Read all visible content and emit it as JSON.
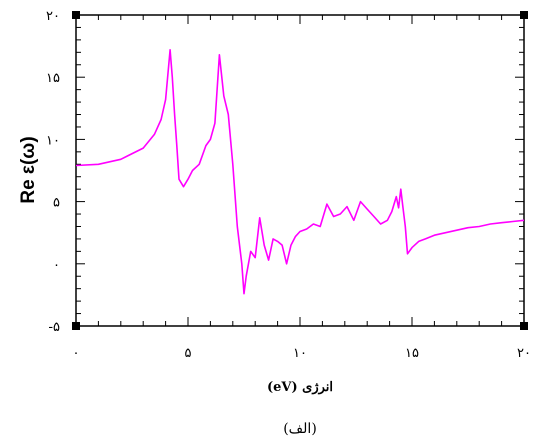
{
  "chart_data": {
    "type": "line",
    "xlabel": "انرژی (eV)",
    "ylabel": "Re ε(ω)",
    "caption": "(الف)",
    "xlim": [
      0,
      20
    ],
    "ylim": [
      -5,
      20
    ],
    "x_ticks": [
      {
        "value": 0,
        "label": "۰"
      },
      {
        "value": 5,
        "label": "۵"
      },
      {
        "value": 10,
        "label": "۱۰"
      },
      {
        "value": 15,
        "label": "۱۵"
      },
      {
        "value": 20,
        "label": "۲۰"
      }
    ],
    "y_ticks": [
      {
        "value": -5,
        "label": "-۵"
      },
      {
        "value": 0,
        "label": "۰"
      },
      {
        "value": 5,
        "label": "۵"
      },
      {
        "value": 10,
        "label": "۱۰"
      },
      {
        "value": 15,
        "label": "۱۵"
      },
      {
        "value": 20,
        "label": "۲۰"
      }
    ],
    "line_color": "#ff00ff",
    "series": [
      {
        "x": [
          0,
          1,
          2,
          3,
          3.5,
          3.8,
          4.0,
          4.2,
          4.3,
          4.4,
          4.5,
          4.6,
          4.8,
          5.0,
          5.2,
          5.5,
          5.8,
          6.0,
          6.2,
          6.4,
          6.6,
          6.8,
          7.0,
          7.2,
          7.4,
          7.5,
          7.6,
          7.8,
          8.0,
          8.2,
          8.4,
          8.6,
          8.8,
          9.0,
          9.2,
          9.4,
          9.6,
          9.8,
          10.0,
          10.3,
          10.6,
          10.9,
          11.2,
          11.5,
          11.8,
          12.1,
          12.4,
          12.7,
          13.0,
          13.3,
          13.6,
          13.9,
          14.1,
          14.3,
          14.4,
          14.5,
          14.6,
          14.7,
          14.8,
          15.0,
          15.3,
          15.6,
          16.0,
          16.5,
          17.0,
          17.5,
          18.0,
          18.5,
          19.0,
          19.5,
          20.0
        ],
        "y": [
          7.9,
          8.0,
          8.4,
          9.3,
          10.4,
          11.6,
          13.2,
          17.2,
          15.0,
          12.0,
          9.5,
          6.8,
          6.2,
          6.8,
          7.5,
          8.0,
          9.5,
          10.0,
          11.3,
          16.8,
          13.5,
          12.0,
          8.0,
          3.0,
          0.0,
          -2.4,
          -1.0,
          1.0,
          0.5,
          3.7,
          1.5,
          0.3,
          2.0,
          1.8,
          1.5,
          0.0,
          1.5,
          2.2,
          2.6,
          2.8,
          3.2,
          3.0,
          4.8,
          3.8,
          4.0,
          4.6,
          3.5,
          5.0,
          4.4,
          3.8,
          3.2,
          3.5,
          4.2,
          5.4,
          4.5,
          6.0,
          4.5,
          3.0,
          0.8,
          1.3,
          1.8,
          2.0,
          2.3,
          2.5,
          2.7,
          2.9,
          3.0,
          3.2,
          3.3,
          3.4,
          3.5
        ]
      }
    ]
  }
}
